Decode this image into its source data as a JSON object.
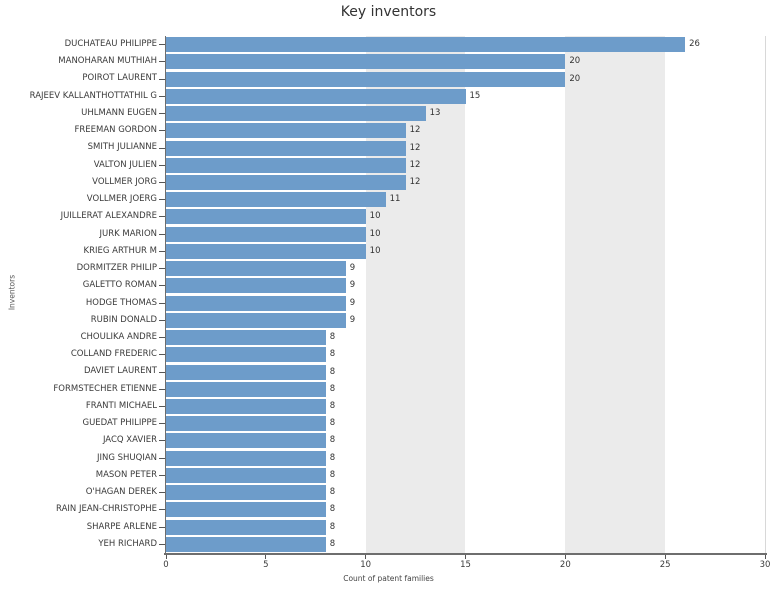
{
  "chart_data": {
    "type": "bar",
    "orientation": "horizontal",
    "title": "Key inventors",
    "xlabel": "Count of patent families",
    "ylabel": "Inventors",
    "xlim": [
      0,
      30
    ],
    "xticks": [
      0,
      5,
      10,
      15,
      20,
      25,
      30
    ],
    "grid_bands": [
      [
        10,
        15
      ],
      [
        20,
        25
      ]
    ],
    "grid": "alternating vertical bands",
    "legend": "none",
    "bar_color": "#6d9cca",
    "band_color": "#ebebeb",
    "categories": [
      "DUCHATEAU PHILIPPE",
      "MANOHARAN MUTHIAH",
      "POIROT LAURENT",
      "RAJEEV KALLANTHOTTATHIL G",
      "UHLMANN EUGEN",
      "FREEMAN GORDON",
      "SMITH JULIANNE",
      "VALTON JULIEN",
      "VOLLMER JORG",
      "VOLLMER JOERG",
      "JUILLERAT ALEXANDRE",
      "JURK MARION",
      "KRIEG ARTHUR M",
      "DORMITZER PHILIP",
      "GALETTO ROMAN",
      "HODGE THOMAS",
      "RUBIN DONALD",
      "CHOULIKA ANDRE",
      "COLLAND FREDERIC",
      "DAVIET LAURENT",
      "FORMSTECHER ETIENNE",
      "FRANTI MICHAEL",
      "GUEDAT PHILIPPE",
      "JACQ XAVIER",
      "JING SHUQIAN",
      "MASON PETER",
      "O'HAGAN DEREK",
      "RAIN JEAN-CHRISTOPHE",
      "SHARPE ARLENE",
      "YEH RICHARD"
    ],
    "values": [
      26,
      20,
      20,
      15,
      13,
      12,
      12,
      12,
      12,
      11,
      10,
      10,
      10,
      9,
      9,
      9,
      9,
      8,
      8,
      8,
      8,
      8,
      8,
      8,
      8,
      8,
      8,
      8,
      8,
      8
    ]
  }
}
